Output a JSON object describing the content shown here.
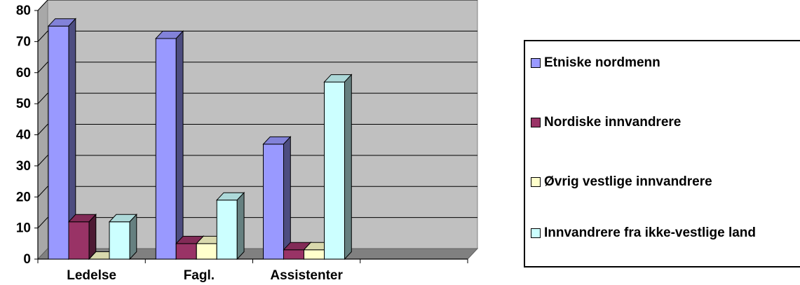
{
  "chart_data": {
    "type": "bar",
    "categories": [
      "Ledelse",
      "Fagl.",
      "Assistenter"
    ],
    "series": [
      {
        "name": "Etniske nordmenn",
        "values": [
          75,
          71,
          37
        ],
        "color": "#9999ff"
      },
      {
        "name": "Nordiske innvandrere",
        "values": [
          12,
          5,
          3
        ],
        "color": "#993366"
      },
      {
        "name": "Øvrig vestlige innvandrere",
        "values": [
          0,
          5,
          3
        ],
        "color": "#ffffcc"
      },
      {
        "name": "Innvandrere fra ikke-vestlige land",
        "values": [
          12,
          19,
          57
        ],
        "color": "#ccffff"
      }
    ],
    "yticks": [
      0,
      10,
      20,
      30,
      40,
      50,
      60,
      70,
      80
    ],
    "ylim": [
      0,
      80
    ],
    "grid": true,
    "legend_position": "right",
    "plot_background": "#c0c0c0",
    "three_d": true
  }
}
